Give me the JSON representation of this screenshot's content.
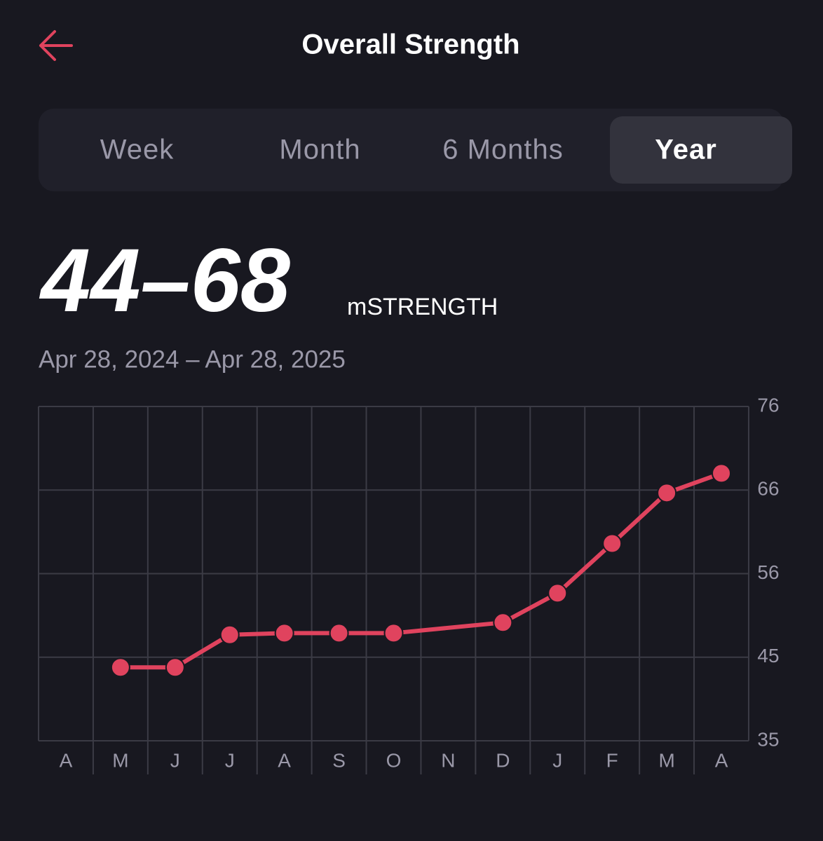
{
  "header": {
    "title": "Overall Strength"
  },
  "tabs": {
    "items": [
      "Week",
      "Month",
      "6 Months",
      "Year"
    ],
    "selected": 3
  },
  "summary": {
    "range": "44–68",
    "unit": "mSTRENGTH",
    "dates": "Apr 28, 2024 – Apr 28, 2025"
  },
  "chart_data": {
    "type": "line",
    "categories": [
      "A",
      "M",
      "J",
      "J",
      "A",
      "S",
      "O",
      "N",
      "D",
      "J",
      "F",
      "M",
      "A"
    ],
    "values": [
      null,
      44,
      44,
      48,
      48.2,
      48.2,
      48.2,
      null,
      49.5,
      53.1,
      59.2,
      65.4,
      67.8
    ],
    "color": "#e0435e",
    "ylim": [
      35,
      76
    ],
    "yticks": [
      35,
      {
        "value": 45.25,
        "label": "45"
      },
      {
        "value": 55.5,
        "label": "56"
      },
      {
        "value": 65.75,
        "label": "66"
      },
      76
    ],
    "grid": true
  }
}
